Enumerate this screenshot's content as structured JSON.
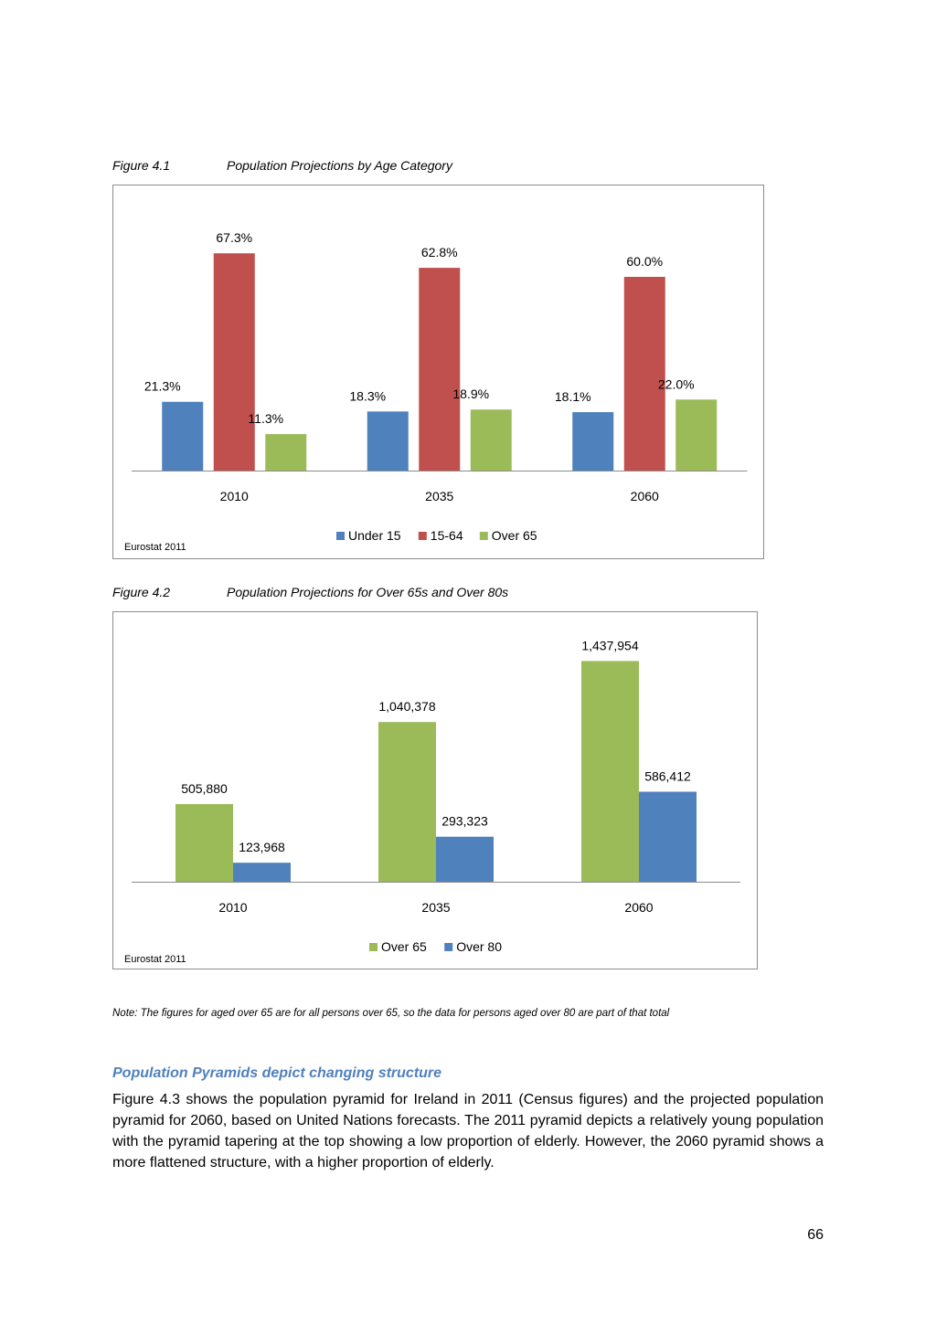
{
  "figures": [
    {
      "number": "Figure 4.1",
      "title": "Population Projections by Age Category",
      "source": "Eurostat 2011"
    },
    {
      "number": "Figure 4.2",
      "title": "Population Projections for Over 65s and Over 80s",
      "source": "Eurostat 2011"
    }
  ],
  "chart_data": [
    {
      "type": "bar",
      "categories": [
        "2010",
        "2035",
        "2060"
      ],
      "series": [
        {
          "name": "Under 15",
          "color": "#4f81bd",
          "values": [
            21.3,
            18.3,
            18.1
          ],
          "labels": [
            "21.3%",
            "18.3%",
            "18.1%"
          ]
        },
        {
          "name": "15-64",
          "color": "#c0504d",
          "values": [
            67.3,
            62.8,
            60.0
          ],
          "labels": [
            "67.3%",
            "62.8%",
            "60.0%"
          ]
        },
        {
          "name": "Over 65",
          "color": "#9bbb59",
          "values": [
            11.3,
            18.9,
            22.0
          ],
          "labels": [
            "11.3%",
            "18.9%",
            "22.0%"
          ]
        }
      ],
      "ylim": [
        0,
        75
      ],
      "legend": "bottom",
      "grid": false
    },
    {
      "type": "bar",
      "categories": [
        "2010",
        "2035",
        "2060"
      ],
      "series": [
        {
          "name": "Over 65",
          "color": "#9bbb59",
          "values": [
            505880,
            1040378,
            1437954
          ],
          "labels": [
            "505,880",
            "1,040,378",
            "1,437,954"
          ]
        },
        {
          "name": "Over 80",
          "color": "#4f81bd",
          "values": [
            123968,
            293323,
            586412
          ],
          "labels": [
            "123,968",
            "293,323",
            "586,412"
          ]
        }
      ],
      "ylim": [
        0,
        1500000
      ],
      "legend": "bottom",
      "grid": false
    }
  ],
  "note": "Note: The figures for aged over 65 are for all persons over 65, so the data for persons aged over 80 are part of that total",
  "section_heading": "Population Pyramids depict changing structure",
  "body_paragraph": "Figure 4.3 shows the population pyramid for Ireland in 2011 (Census figures) and the projected population pyramid for 2060, based on United Nations forecasts. The 2011 pyramid depicts a relatively young population with the pyramid tapering at the top showing a low proportion of elderly. However, the 2060 pyramid shows a more flattened structure, with a higher proportion of elderly.",
  "page_number": "66"
}
